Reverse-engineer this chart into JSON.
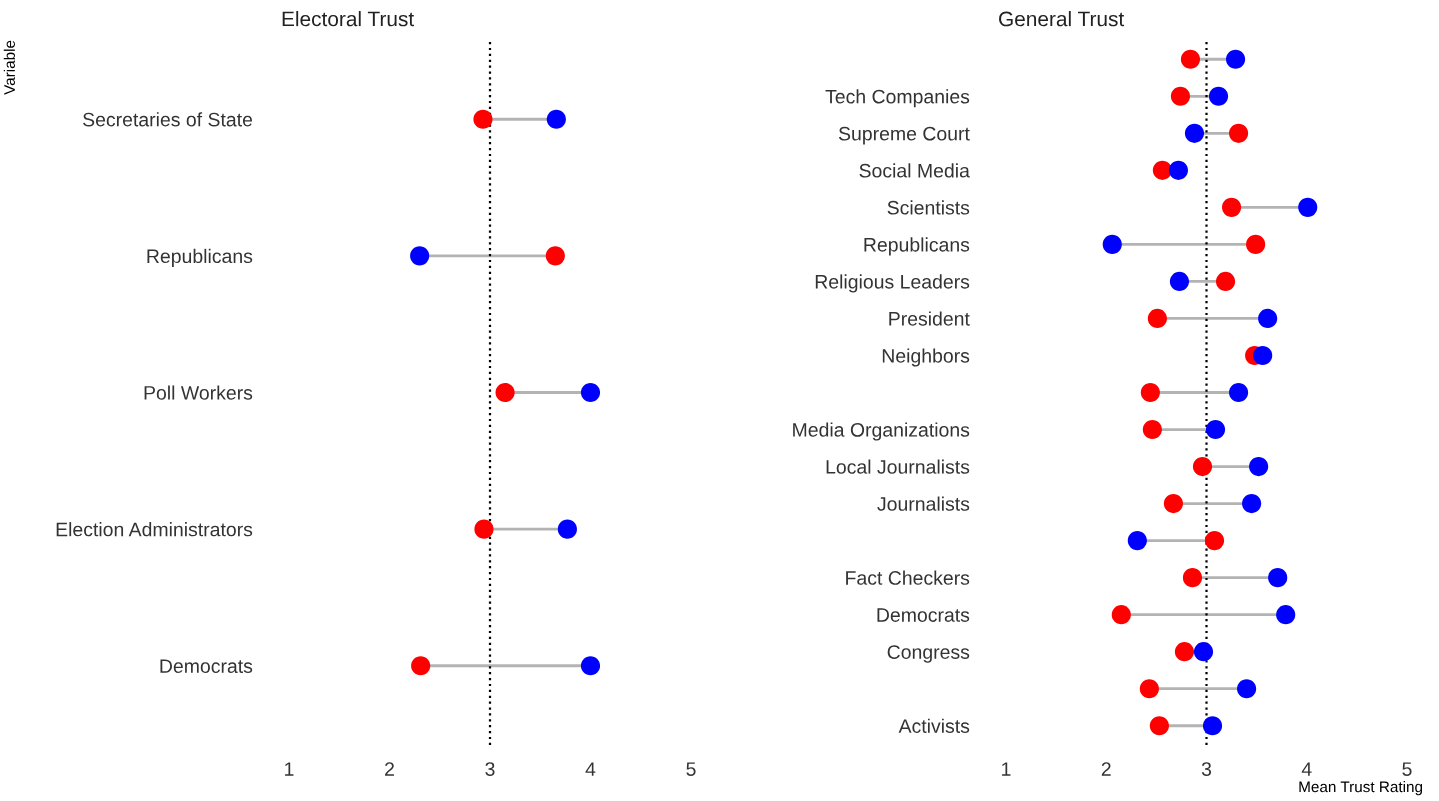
{
  "chart_data": [
    {
      "type": "scatter",
      "orientation": "horizontal",
      "title": "Electoral Trust",
      "ylabel": "Variable",
      "categories": [
        "Secretaries of State",
        "Republicans",
        "Poll Workers",
        "Election Administrators",
        "Democrats"
      ],
      "series": [
        {
          "color": "#ff0000",
          "values": [
            2.93,
            3.65,
            3.15,
            2.94,
            2.31
          ]
        },
        {
          "color": "#0000ff",
          "values": [
            3.66,
            2.3,
            4.0,
            3.77,
            4.0
          ]
        }
      ],
      "xlim": [
        1,
        5
      ],
      "xticks": [
        1,
        2,
        3,
        4,
        5
      ],
      "marker": "circle",
      "grid": false,
      "ref_lines": [
        {
          "axis": "x",
          "value": 3,
          "color": "#000000",
          "line_style": "dotted"
        }
      ]
    },
    {
      "type": "scatter",
      "orientation": "horizontal",
      "title": "General Trust",
      "xlabel": "Mean Trust Rating",
      "categories": [
        null,
        "Tech Companies",
        "Supreme Court",
        "Social Media",
        "Scientists",
        "Republicans",
        "Religious Leaders",
        "President",
        "Neighbors",
        null,
        "Media Organizations",
        "Local Journalists",
        "Journalists",
        null,
        "Fact Checkers",
        "Democrats",
        "Congress",
        null,
        "Activists"
      ],
      "series": [
        {
          "color": "#ff0000",
          "values": [
            2.84,
            2.74,
            3.32,
            2.56,
            3.25,
            3.49,
            3.19,
            2.51,
            3.48,
            2.44,
            2.46,
            2.96,
            2.67,
            3.08,
            2.86,
            2.15,
            2.78,
            2.43,
            2.53
          ]
        },
        {
          "color": "#0000ff",
          "values": [
            3.29,
            3.12,
            2.88,
            2.72,
            4.01,
            2.06,
            2.73,
            3.61,
            3.56,
            3.32,
            3.09,
            3.52,
            3.45,
            2.31,
            3.71,
            3.79,
            2.97,
            3.4,
            3.06
          ]
        }
      ],
      "xlim": [
        1,
        5
      ],
      "xticks": [
        1,
        2,
        3,
        4,
        5
      ],
      "marker": "circle",
      "grid": false,
      "ref_lines": [
        {
          "axis": "x",
          "value": 3,
          "color": "#000000",
          "line_style": "dotted"
        }
      ]
    }
  ]
}
